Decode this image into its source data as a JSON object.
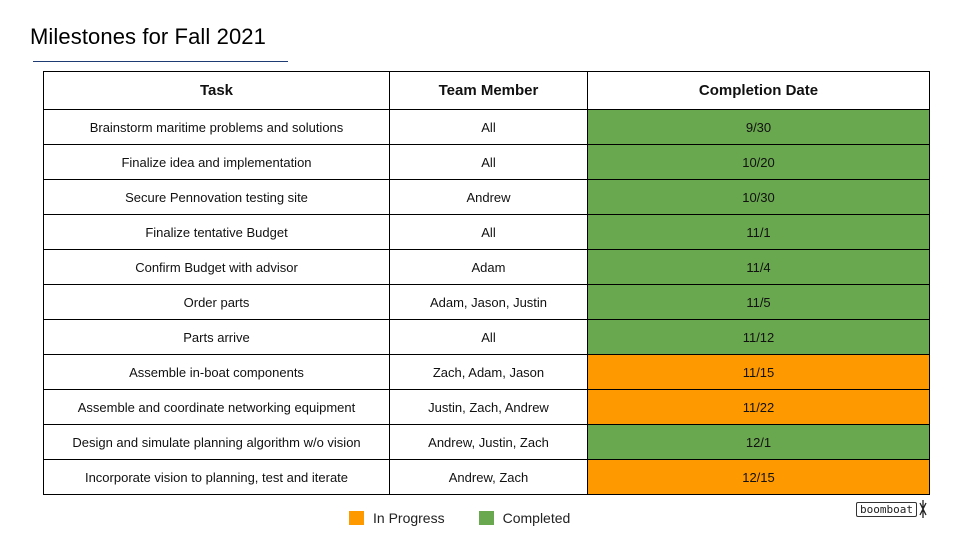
{
  "title": "Milestones for Fall 2021",
  "colors": {
    "completed": "#6aa84f",
    "in_progress": "#ff9900",
    "title_rule": "#1f3b73"
  },
  "table": {
    "headers": [
      "Task",
      "Team Member",
      "Completion Date"
    ],
    "rows": [
      {
        "task": "Brainstorm maritime problems and solutions",
        "member": "All",
        "date": "9/30",
        "status": "completed"
      },
      {
        "task": "Finalize idea and implementation",
        "member": "All",
        "date": "10/20",
        "status": "completed"
      },
      {
        "task": "Secure Pennovation testing site",
        "member": "Andrew",
        "date": "10/30",
        "status": "completed"
      },
      {
        "task": "Finalize tentative Budget",
        "member": "All",
        "date": "11/1",
        "status": "completed"
      },
      {
        "task": "Confirm Budget with advisor",
        "member": "Adam",
        "date": "11/4",
        "status": "completed"
      },
      {
        "task": "Order parts",
        "member": "Adam, Jason, Justin",
        "date": "11/5",
        "status": "completed"
      },
      {
        "task": "Parts arrive",
        "member": "All",
        "date": "11/12",
        "status": "completed"
      },
      {
        "task": "Assemble in-boat components",
        "member": "Zach, Adam, Jason",
        "date": "11/15",
        "status": "in-progress"
      },
      {
        "task": "Assemble and coordinate networking equipment",
        "member": "Justin, Zach, Andrew",
        "date": "11/22",
        "status": "in-progress"
      },
      {
        "task": "Design and simulate planning algorithm w/o vision",
        "member": "Andrew, Justin, Zach",
        "date": "12/1",
        "status": "completed"
      },
      {
        "task": "Incorporate vision to planning, test and iterate",
        "member": "Andrew, Zach",
        "date": "12/15",
        "status": "in-progress"
      }
    ]
  },
  "legend": {
    "in_progress_label": "In Progress",
    "completed_label": "Completed"
  },
  "logo": {
    "text": "boomboat",
    "icon": "boat-mast-icon"
  }
}
